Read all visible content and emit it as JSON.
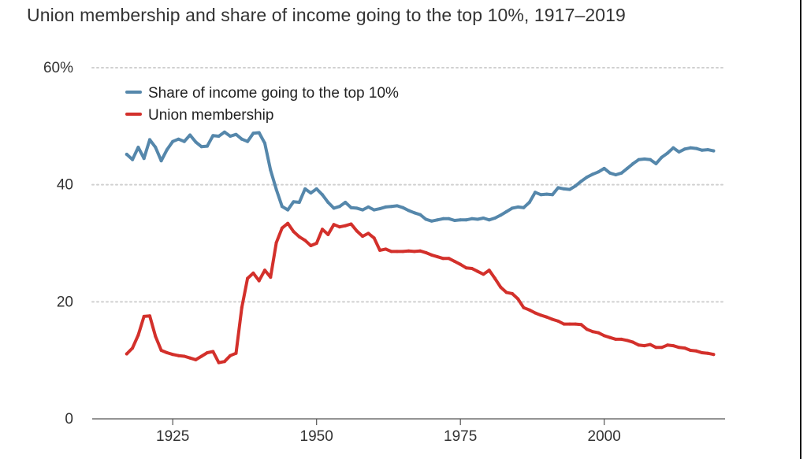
{
  "chart_data": {
    "type": "line",
    "title": "Union membership and share of income going to the top 10%, 1917–2019",
    "xlim": [
      1911,
      2021
    ],
    "ylim": [
      0,
      60
    ],
    "x_ticks": [
      1925,
      1950,
      1975,
      2000
    ],
    "y_ticks": [
      {
        "value": 0,
        "label": "0"
      },
      {
        "value": 20,
        "label": "20"
      },
      {
        "value": 40,
        "label": "40"
      },
      {
        "value": 60,
        "label": "60%"
      }
    ],
    "grid": "horizontal dotted",
    "legend_position": "top-left",
    "series": [
      {
        "name": "Share of income going to the top 10%",
        "color": "#5587AB",
        "points": [
          [
            1917,
            45.2
          ],
          [
            1918,
            44.3
          ],
          [
            1919,
            46.4
          ],
          [
            1920,
            44.5
          ],
          [
            1921,
            47.7
          ],
          [
            1922,
            46.4
          ],
          [
            1923,
            44.1
          ],
          [
            1924,
            46.0
          ],
          [
            1925,
            47.4
          ],
          [
            1926,
            47.8
          ],
          [
            1927,
            47.4
          ],
          [
            1928,
            48.5
          ],
          [
            1929,
            47.3
          ],
          [
            1930,
            46.5
          ],
          [
            1931,
            46.6
          ],
          [
            1932,
            48.4
          ],
          [
            1933,
            48.3
          ],
          [
            1934,
            49.0
          ],
          [
            1935,
            48.3
          ],
          [
            1936,
            48.6
          ],
          [
            1937,
            47.8
          ],
          [
            1938,
            47.4
          ],
          [
            1939,
            48.8
          ],
          [
            1940,
            48.9
          ],
          [
            1941,
            47.1
          ],
          [
            1942,
            42.5
          ],
          [
            1943,
            39.2
          ],
          [
            1944,
            36.3
          ],
          [
            1945,
            35.7
          ],
          [
            1946,
            37.1
          ],
          [
            1947,
            37.0
          ],
          [
            1948,
            39.3
          ],
          [
            1949,
            38.6
          ],
          [
            1950,
            39.3
          ],
          [
            1951,
            38.3
          ],
          [
            1952,
            37.0
          ],
          [
            1953,
            36.0
          ],
          [
            1954,
            36.3
          ],
          [
            1955,
            37.0
          ],
          [
            1956,
            36.1
          ],
          [
            1957,
            36.0
          ],
          [
            1958,
            35.7
          ],
          [
            1959,
            36.2
          ],
          [
            1960,
            35.7
          ],
          [
            1961,
            35.9
          ],
          [
            1962,
            36.2
          ],
          [
            1963,
            36.3
          ],
          [
            1964,
            36.4
          ],
          [
            1965,
            36.1
          ],
          [
            1966,
            35.6
          ],
          [
            1967,
            35.2
          ],
          [
            1968,
            34.9
          ],
          [
            1969,
            34.1
          ],
          [
            1970,
            33.8
          ],
          [
            1971,
            34.0
          ],
          [
            1972,
            34.2
          ],
          [
            1973,
            34.2
          ],
          [
            1974,
            33.9
          ],
          [
            1975,
            34.0
          ],
          [
            1976,
            34.0
          ],
          [
            1977,
            34.2
          ],
          [
            1978,
            34.1
          ],
          [
            1979,
            34.3
          ],
          [
            1980,
            34.0
          ],
          [
            1981,
            34.3
          ],
          [
            1982,
            34.8
          ],
          [
            1983,
            35.4
          ],
          [
            1984,
            36.0
          ],
          [
            1985,
            36.2
          ],
          [
            1986,
            36.1
          ],
          [
            1987,
            37.0
          ],
          [
            1988,
            38.7
          ],
          [
            1989,
            38.3
          ],
          [
            1990,
            38.4
          ],
          [
            1991,
            38.3
          ],
          [
            1992,
            39.5
          ],
          [
            1993,
            39.3
          ],
          [
            1994,
            39.2
          ],
          [
            1995,
            39.8
          ],
          [
            1996,
            40.6
          ],
          [
            1997,
            41.3
          ],
          [
            1998,
            41.8
          ],
          [
            1999,
            42.2
          ],
          [
            2000,
            42.8
          ],
          [
            2001,
            42.0
          ],
          [
            2002,
            41.7
          ],
          [
            2003,
            42.0
          ],
          [
            2004,
            42.8
          ],
          [
            2005,
            43.6
          ],
          [
            2006,
            44.3
          ],
          [
            2007,
            44.4
          ],
          [
            2008,
            44.3
          ],
          [
            2009,
            43.6
          ],
          [
            2010,
            44.7
          ],
          [
            2011,
            45.4
          ],
          [
            2012,
            46.3
          ],
          [
            2013,
            45.6
          ],
          [
            2014,
            46.1
          ],
          [
            2015,
            46.3
          ],
          [
            2016,
            46.2
          ],
          [
            2017,
            45.9
          ],
          [
            2018,
            46.0
          ],
          [
            2019,
            45.8
          ]
        ]
      },
      {
        "name": "Union membership",
        "color": "#D3302B",
        "points": [
          [
            1917,
            11.1
          ],
          [
            1918,
            12.1
          ],
          [
            1919,
            14.3
          ],
          [
            1920,
            17.5
          ],
          [
            1921,
            17.6
          ],
          [
            1922,
            14.1
          ],
          [
            1923,
            11.7
          ],
          [
            1924,
            11.3
          ],
          [
            1925,
            11.0
          ],
          [
            1926,
            10.8
          ],
          [
            1927,
            10.7
          ],
          [
            1928,
            10.4
          ],
          [
            1929,
            10.1
          ],
          [
            1930,
            10.7
          ],
          [
            1931,
            11.3
          ],
          [
            1932,
            11.5
          ],
          [
            1933,
            9.6
          ],
          [
            1934,
            9.8
          ],
          [
            1935,
            10.8
          ],
          [
            1936,
            11.2
          ],
          [
            1937,
            19.0
          ],
          [
            1938,
            24.0
          ],
          [
            1939,
            24.9
          ],
          [
            1940,
            23.6
          ],
          [
            1941,
            25.4
          ],
          [
            1942,
            24.2
          ],
          [
            1943,
            30.1
          ],
          [
            1944,
            32.6
          ],
          [
            1945,
            33.4
          ],
          [
            1946,
            32.0
          ],
          [
            1947,
            31.1
          ],
          [
            1948,
            30.5
          ],
          [
            1949,
            29.6
          ],
          [
            1950,
            30.0
          ],
          [
            1951,
            32.4
          ],
          [
            1952,
            31.5
          ],
          [
            1953,
            33.2
          ],
          [
            1954,
            32.8
          ],
          [
            1955,
            33.0
          ],
          [
            1956,
            33.3
          ],
          [
            1957,
            32.1
          ],
          [
            1958,
            31.2
          ],
          [
            1959,
            31.7
          ],
          [
            1960,
            30.9
          ],
          [
            1961,
            28.8
          ],
          [
            1962,
            29.0
          ],
          [
            1963,
            28.6
          ],
          [
            1964,
            28.6
          ],
          [
            1965,
            28.6
          ],
          [
            1966,
            28.7
          ],
          [
            1967,
            28.6
          ],
          [
            1968,
            28.7
          ],
          [
            1969,
            28.4
          ],
          [
            1970,
            28.0
          ],
          [
            1971,
            27.7
          ],
          [
            1972,
            27.4
          ],
          [
            1973,
            27.4
          ],
          [
            1974,
            26.9
          ],
          [
            1975,
            26.4
          ],
          [
            1976,
            25.8
          ],
          [
            1977,
            25.7
          ],
          [
            1978,
            25.2
          ],
          [
            1979,
            24.7
          ],
          [
            1980,
            25.4
          ],
          [
            1981,
            24.0
          ],
          [
            1982,
            22.5
          ],
          [
            1983,
            21.6
          ],
          [
            1984,
            21.4
          ],
          [
            1985,
            20.5
          ],
          [
            1986,
            19.0
          ],
          [
            1987,
            18.6
          ],
          [
            1988,
            18.1
          ],
          [
            1989,
            17.7
          ],
          [
            1990,
            17.4
          ],
          [
            1991,
            17.0
          ],
          [
            1992,
            16.7
          ],
          [
            1993,
            16.2
          ],
          [
            1994,
            16.2
          ],
          [
            1995,
            16.2
          ],
          [
            1996,
            16.1
          ],
          [
            1997,
            15.3
          ],
          [
            1998,
            14.9
          ],
          [
            1999,
            14.7
          ],
          [
            2000,
            14.2
          ],
          [
            2001,
            13.9
          ],
          [
            2002,
            13.6
          ],
          [
            2003,
            13.6
          ],
          [
            2004,
            13.4
          ],
          [
            2005,
            13.1
          ],
          [
            2006,
            12.6
          ],
          [
            2007,
            12.5
          ],
          [
            2008,
            12.7
          ],
          [
            2009,
            12.2
          ],
          [
            2010,
            12.2
          ],
          [
            2011,
            12.6
          ],
          [
            2012,
            12.5
          ],
          [
            2013,
            12.2
          ],
          [
            2014,
            12.1
          ],
          [
            2015,
            11.7
          ],
          [
            2016,
            11.6
          ],
          [
            2017,
            11.3
          ],
          [
            2018,
            11.2
          ],
          [
            2019,
            11.0
          ]
        ]
      }
    ]
  }
}
